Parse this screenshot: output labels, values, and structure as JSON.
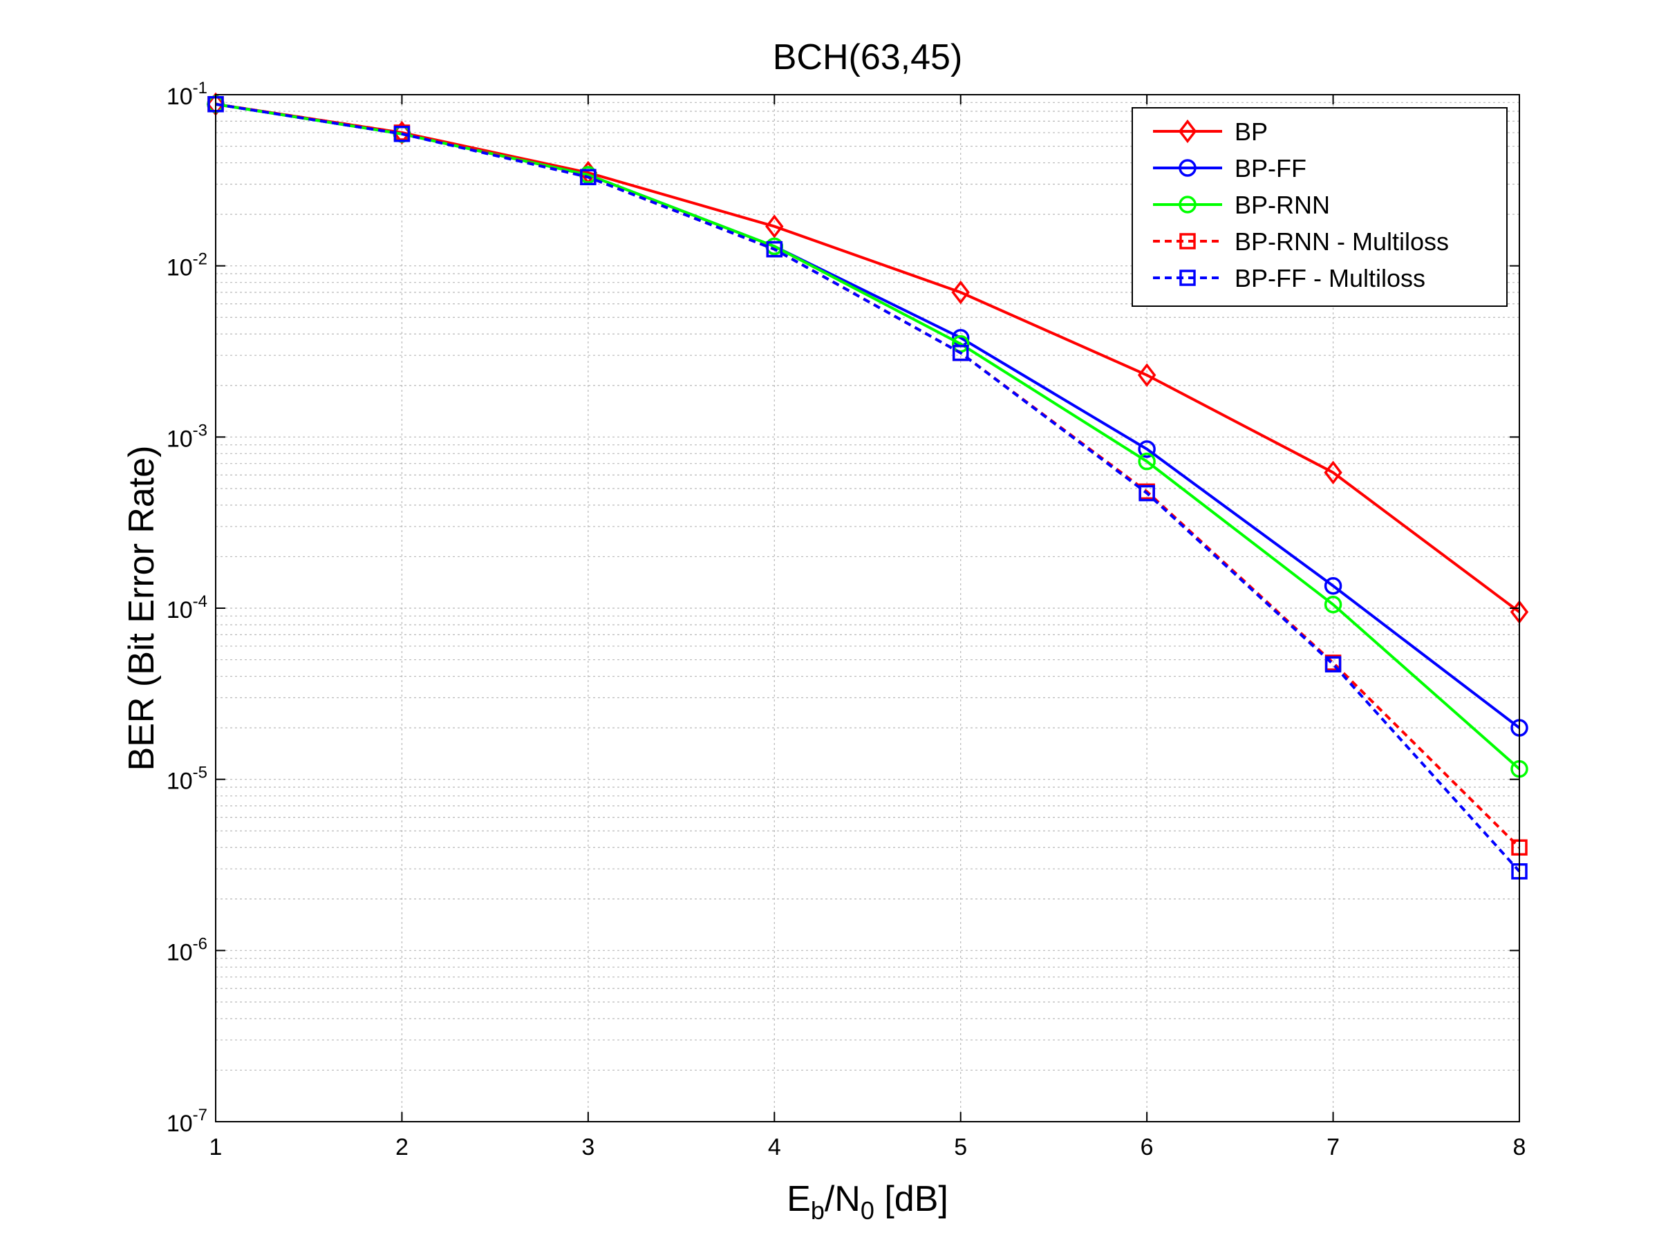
{
  "chart_data": {
    "type": "line",
    "title": "BCH(63,45)",
    "xlabel": {
      "main": "E",
      "sub1": "b",
      "mid": "/N",
      "sub2": "0",
      "suffix": " [dB]"
    },
    "ylabel": "BER (Bit Error Rate)",
    "xlim": [
      1,
      8
    ],
    "ylim": [
      1e-07,
      0.1
    ],
    "yscale": "log",
    "grid": true,
    "legend_position": "top-right",
    "x_ticks": [
      "1",
      "2",
      "3",
      "4",
      "5",
      "6",
      "7",
      "8"
    ],
    "y_ticks": [
      {
        "base": "10",
        "exp": "-1"
      },
      {
        "base": "10",
        "exp": "-2"
      },
      {
        "base": "10",
        "exp": "-3"
      },
      {
        "base": "10",
        "exp": "-4"
      },
      {
        "base": "10",
        "exp": "-5"
      },
      {
        "base": "10",
        "exp": "-6"
      },
      {
        "base": "10",
        "exp": "-7"
      }
    ],
    "x": [
      1,
      2,
      3,
      4,
      5,
      6,
      7,
      8
    ],
    "series": [
      {
        "name": "BP",
        "color": "#ff0000",
        "marker": "diamond",
        "dash": false,
        "values": [
          0.088,
          0.06,
          0.035,
          0.017,
          0.007,
          0.0023,
          0.00062,
          9.5e-05
        ]
      },
      {
        "name": "BP-FF",
        "color": "#0000ff",
        "marker": "circle",
        "dash": false,
        "values": [
          0.088,
          0.059,
          0.034,
          0.013,
          0.0038,
          0.00085,
          0.000135,
          2e-05
        ]
      },
      {
        "name": "BP-RNN",
        "color": "#00ff00",
        "marker": "circle",
        "dash": false,
        "values": [
          0.088,
          0.059,
          0.034,
          0.013,
          0.0035,
          0.00072,
          0.000105,
          1.15e-05
        ]
      },
      {
        "name": "BP-RNN - Multiloss",
        "color": "#ff0000",
        "marker": "square",
        "dash": true,
        "values": [
          0.088,
          0.06,
          0.033,
          0.0125,
          0.0031,
          0.00048,
          4.8e-05,
          4e-06
        ]
      },
      {
        "name": "BP-FF - Multiloss",
        "color": "#0000ff",
        "marker": "square",
        "dash": true,
        "values": [
          0.088,
          0.059,
          0.033,
          0.0125,
          0.0031,
          0.00047,
          4.7e-05,
          2.9e-06
        ]
      }
    ]
  }
}
